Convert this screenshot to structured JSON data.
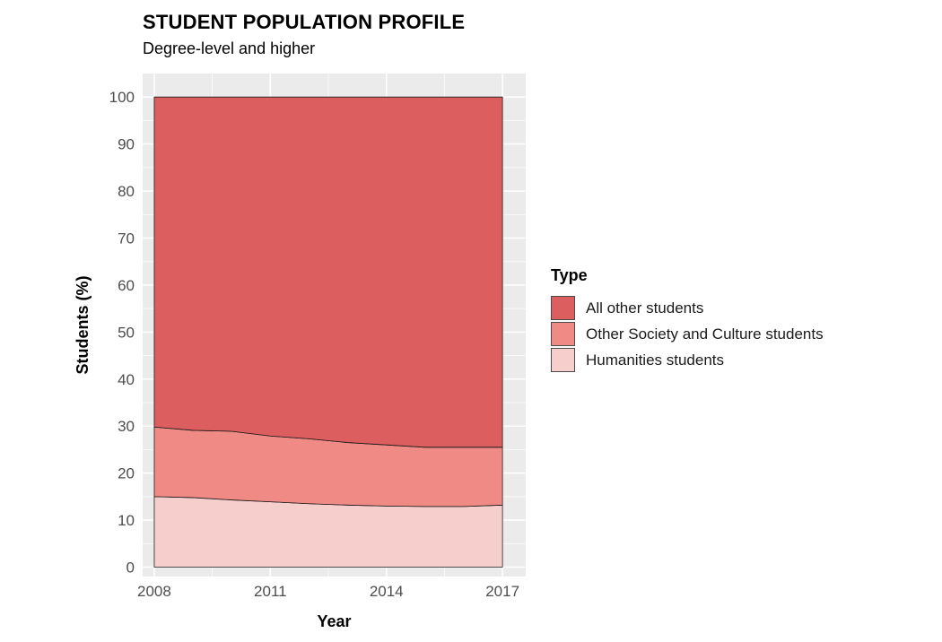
{
  "title": "STUDENT POPULATION PROFILE",
  "subtitle": "Degree-level and higher",
  "legend_title": "Type",
  "colors": {
    "panel_bg": "#ebebeb",
    "grid": "#ffffff",
    "tick_text": "#4d4d4d",
    "all_other": "#dc5e5e",
    "other_society": "#ef8a84",
    "humanities": "#f6cfcd"
  },
  "chart_data": {
    "type": "area",
    "stacked": true,
    "title": "STUDENT POPULATION PROFILE",
    "subtitle": "Degree-level and higher",
    "xlabel": "Year",
    "ylabel": "Students (%)",
    "xlim": [
      2007.7,
      2017.6
    ],
    "ylim": [
      -2,
      105
    ],
    "x_ticks": [
      2008,
      2011,
      2014,
      2017
    ],
    "y_ticks": [
      0,
      10,
      20,
      30,
      40,
      50,
      60,
      70,
      80,
      90,
      100
    ],
    "x": [
      2008,
      2009,
      2010,
      2011,
      2012,
      2013,
      2014,
      2015,
      2016,
      2017
    ],
    "series": [
      {
        "name": "Humanities students",
        "values": [
          15.0,
          14.8,
          14.3,
          13.9,
          13.5,
          13.2,
          13.0,
          12.9,
          12.9,
          13.2
        ]
      },
      {
        "name": "Other Society and Culture students",
        "values": [
          14.8,
          14.3,
          14.6,
          14.0,
          13.8,
          13.3,
          13.0,
          12.6,
          12.6,
          12.3
        ]
      },
      {
        "name": "All other students",
        "values": [
          70.2,
          70.9,
          71.1,
          72.1,
          72.7,
          73.5,
          74.0,
          74.5,
          74.5,
          74.5
        ]
      }
    ],
    "legend": {
      "position": "right",
      "entries": [
        "All other students",
        "Other Society and Culture students",
        "Humanities students"
      ]
    },
    "grid": true
  }
}
